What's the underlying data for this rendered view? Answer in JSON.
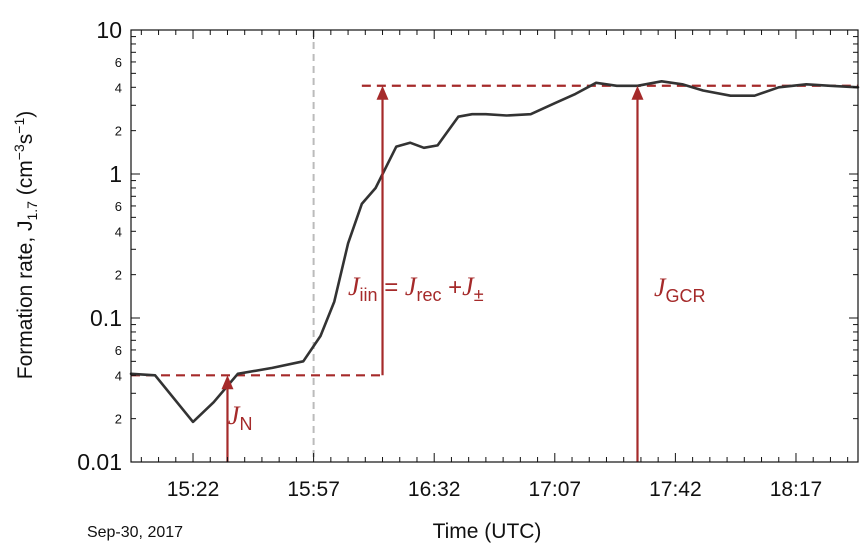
{
  "chart_data": {
    "type": "line",
    "xlabel": "Time (UTC)",
    "ylabel": "Formation  rate, J",
    "ylabel_sub": "1.7",
    "ylabel_unit_open": " (cm",
    "ylabel_unit_exp1": "−3",
    "ylabel_unit_mid": "s",
    "ylabel_unit_exp2": "−1",
    "ylabel_unit_close": ")",
    "date_label": "Sep-30, 2017",
    "y_scale": "log",
    "ylim": [
      0.01,
      10
    ],
    "xlim": [
      "15:04",
      "18:35"
    ],
    "x_ticks": [
      "15:22",
      "15:57",
      "16:32",
      "17:07",
      "17:42",
      "18:17"
    ],
    "y_major_ticks": [
      {
        "value": 0.01,
        "label": "0.01"
      },
      {
        "value": 0.1,
        "label": "0.1"
      },
      {
        "value": 1,
        "label": "1"
      },
      {
        "value": 10,
        "label": "10"
      }
    ],
    "y_minor_ticks": [
      {
        "value": 0.02,
        "label": "2"
      },
      {
        "value": 0.04,
        "label": "4"
      },
      {
        "value": 0.06,
        "label": "6"
      },
      {
        "value": 0.2,
        "label": "2"
      },
      {
        "value": 0.4,
        "label": "4"
      },
      {
        "value": 0.6,
        "label": "6"
      },
      {
        "value": 2,
        "label": "2"
      },
      {
        "value": 4,
        "label": "4"
      },
      {
        "value": 6,
        "label": "6"
      }
    ],
    "series": [
      {
        "color": "#333333",
        "x": [
          "15:04",
          "15:11",
          "15:22",
          "15:28",
          "15:35",
          "15:45",
          "15:54",
          "15:59",
          "16:03",
          "16:07",
          "16:11",
          "16:15",
          "16:21",
          "16:25",
          "16:29",
          "16:33",
          "16:39",
          "16:43",
          "16:47",
          "16:53",
          "17:00",
          "17:07",
          "17:13",
          "17:19",
          "17:25",
          "17:31",
          "17:38",
          "17:44",
          "17:50",
          "17:58",
          "18:05",
          "18:12",
          "18:20",
          "18:27",
          "18:35"
        ],
        "y": [
          0.041,
          0.04,
          0.019,
          0.026,
          0.041,
          0.045,
          0.05,
          0.075,
          0.13,
          0.33,
          0.62,
          0.8,
          1.55,
          1.65,
          1.52,
          1.58,
          2.5,
          2.6,
          2.6,
          2.55,
          2.6,
          3.1,
          3.6,
          4.3,
          4.1,
          4.1,
          4.4,
          4.2,
          3.8,
          3.5,
          3.5,
          4.0,
          4.2,
          4.1,
          4.0
        ]
      }
    ],
    "vertical_line": {
      "x": "15:57",
      "color": "#bbbbbb",
      "style": "dashed"
    },
    "reference_lines": [
      {
        "y": 0.04,
        "x_start": "15:04",
        "x_end": "16:17",
        "color": "#a52a2a",
        "style": "dashed"
      },
      {
        "y": 4.1,
        "x_start": "16:11",
        "x_end": "18:35",
        "color": "#a52a2a",
        "style": "dashed"
      }
    ],
    "arrows": [
      {
        "x": "15:32",
        "from": 0.01,
        "to": 0.04,
        "label": "J",
        "sub": "N"
      },
      {
        "x": "16:17",
        "from": 0.04,
        "to": 4.1,
        "label": "J",
        "sub": "iin",
        "eq": " = ",
        "label2": "J",
        "sub2": "rec",
        "plus": " +",
        "label3": "J",
        "sub3": "±"
      },
      {
        "x": "17:31",
        "from": 0.01,
        "to": 4.1,
        "label": "J",
        "sub": "GCR"
      }
    ],
    "annotation_color": "#a52a2a"
  }
}
